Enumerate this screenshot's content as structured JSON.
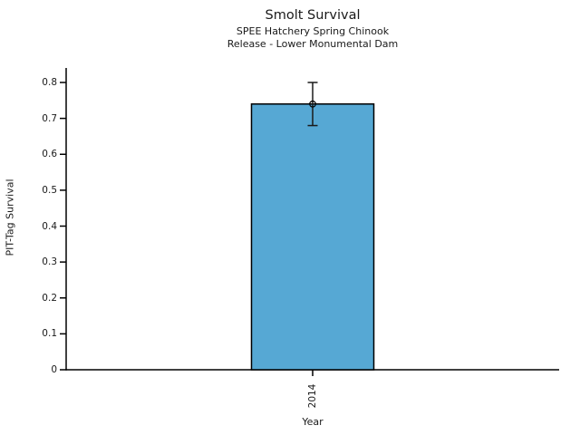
{
  "chart_data": {
    "type": "bar",
    "title": "Smolt Survival",
    "subtitle_line1": "SPEE Hatchery Spring Chinook",
    "subtitle_line2": "Release - Lower Monumental Dam",
    "xlabel": "Year",
    "ylabel": "PIT-Tag Survival",
    "categories": [
      "2014"
    ],
    "values": [
      0.74
    ],
    "error_bars": [
      {
        "low": 0.68,
        "high": 0.8
      }
    ],
    "yticks": [
      0,
      0.1,
      0.2,
      0.3,
      0.4,
      0.5,
      0.6,
      0.7,
      0.8
    ],
    "ytick_labels": [
      "0",
      "0.1",
      "0.2",
      "0.3",
      "0.4",
      "0.5",
      "0.6",
      "0.7",
      "0.8"
    ],
    "ylim": [
      0,
      0.84
    ],
    "bar_color": "#56a8d4",
    "bar_edge_color": "#000000",
    "error_color": "#1a1a1a",
    "marker": "open-circle",
    "grid": false,
    "legend": false
  }
}
